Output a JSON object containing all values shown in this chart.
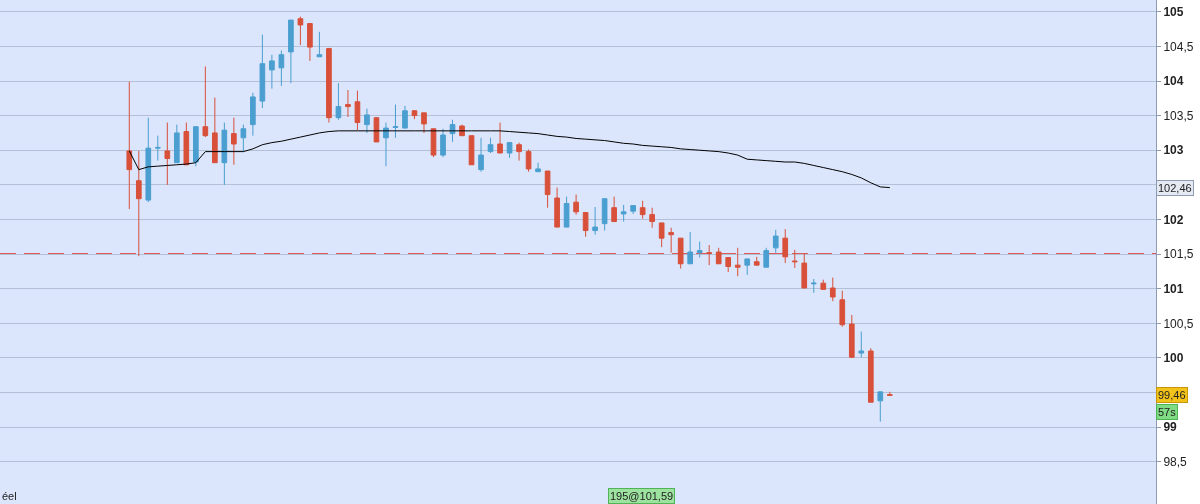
{
  "chart_data": {
    "type": "candlestick",
    "categories": [
      null,
      null,
      null,
      null,
      null,
      null,
      null,
      null,
      null,
      null,
      null,
      null,
      null,
      null,
      null,
      null,
      null,
      null,
      null,
      null,
      null,
      null,
      null,
      null,
      null,
      null,
      null,
      null,
      null,
      null,
      null,
      null,
      null,
      null,
      null,
      null,
      null,
      null,
      null,
      null,
      null,
      null,
      null,
      null,
      null,
      null,
      null,
      null,
      null,
      null,
      null,
      null,
      null,
      null,
      null,
      null,
      null,
      null,
      null,
      null,
      null,
      null,
      null,
      null,
      null,
      null,
      null,
      null,
      null,
      null,
      null,
      null,
      null,
      null,
      null,
      null,
      null,
      null,
      null,
      null,
      null
    ],
    "ohlc": [
      [
        102.99,
        103.99,
        102.15,
        102.72
      ],
      [
        102.56,
        102.99,
        101.47,
        102.3
      ],
      [
        102.28,
        103.47,
        102.25,
        103.03
      ],
      [
        103.03,
        103.21,
        102.85,
        103.04
      ],
      [
        102.99,
        103.4,
        102.5,
        102.88
      ],
      [
        102.82,
        103.37,
        102.82,
        103.25
      ],
      [
        103.27,
        103.4,
        102.79,
        102.79
      ],
      [
        102.83,
        103.34,
        102.77,
        103.34
      ],
      [
        103.34,
        104.21,
        103.19,
        103.21
      ],
      [
        103.25,
        103.76,
        102.82,
        102.82
      ],
      [
        102.82,
        103.4,
        102.5,
        103.29
      ],
      [
        103.24,
        103.47,
        102.79,
        103.09
      ],
      [
        103.18,
        103.37,
        102.98,
        103.31
      ],
      [
        103.37,
        103.83,
        103.21,
        103.77
      ],
      [
        103.71,
        104.67,
        103.61,
        104.25
      ],
      [
        104.16,
        104.38,
        103.89,
        104.29
      ],
      [
        104.19,
        104.44,
        103.93,
        104.38
      ],
      [
        104.42,
        104.88,
        103.97,
        104.88
      ],
      [
        104.9,
        104.93,
        104.52,
        104.81
      ],
      [
        104.83,
        104.83,
        104.29,
        104.49
      ],
      [
        104.35,
        104.71,
        104.35,
        104.38
      ],
      [
        104.47,
        104.47,
        103.4,
        103.47
      ],
      [
        103.47,
        103.97,
        103.44,
        103.63
      ],
      [
        103.66,
        103.87,
        103.48,
        103.63
      ],
      [
        103.7,
        103.86,
        103.29,
        103.4
      ],
      [
        103.37,
        103.6,
        103.25,
        103.51
      ],
      [
        103.47,
        103.48,
        103.12,
        103.12
      ],
      [
        103.18,
        103.4,
        102.77,
        103.32
      ],
      [
        103.33,
        103.66,
        103.18,
        103.34
      ],
      [
        103.32,
        103.64,
        103.32,
        103.57
      ],
      [
        103.57,
        103.58,
        103.45,
        103.5
      ],
      [
        103.54,
        103.54,
        103.25,
        103.38
      ],
      [
        103.31,
        103.31,
        102.9,
        102.93
      ],
      [
        102.93,
        103.31,
        102.9,
        103.22
      ],
      [
        103.24,
        103.44,
        103.12,
        103.37
      ],
      [
        103.35,
        103.37,
        103.21,
        103.21
      ],
      [
        103.21,
        103.21,
        102.79,
        102.79
      ],
      [
        102.72,
        103.18,
        102.69,
        102.93
      ],
      [
        102.98,
        103.18,
        102.96,
        103.08
      ],
      [
        103.09,
        103.4,
        102.96,
        102.96
      ],
      [
        102.96,
        103.12,
        102.89,
        103.11
      ],
      [
        103.08,
        103.11,
        102.85,
        102.98
      ],
      [
        102.98,
        103.01,
        102.69,
        102.73
      ],
      [
        102.69,
        102.82,
        102.69,
        102.73
      ],
      [
        102.7,
        102.7,
        102.17,
        102.36
      ],
      [
        102.31,
        102.46,
        101.89,
        101.89
      ],
      [
        101.89,
        102.33,
        101.89,
        102.23
      ],
      [
        102.25,
        102.36,
        102.07,
        102.11
      ],
      [
        102.1,
        102.1,
        101.75,
        101.84
      ],
      [
        101.84,
        102.18,
        101.78,
        101.89
      ],
      [
        101.94,
        102.3,
        101.84,
        102.3
      ],
      [
        102.17,
        102.33,
        101.97,
        101.97
      ],
      [
        102.08,
        102.21,
        101.97,
        102.11
      ],
      [
        102.12,
        102.2,
        102.08,
        102.2
      ],
      [
        102.17,
        102.27,
        102.01,
        102.07
      ],
      [
        102.07,
        102.17,
        101.88,
        101.97
      ],
      [
        101.95,
        101.95,
        101.6,
        101.73
      ],
      [
        101.81,
        101.88,
        101.52,
        101.78
      ],
      [
        101.73,
        101.73,
        101.29,
        101.36
      ],
      [
        101.36,
        101.82,
        101.36,
        101.53
      ],
      [
        101.52,
        101.68,
        101.45,
        101.55
      ],
      [
        101.52,
        101.63,
        101.34,
        101.51
      ],
      [
        101.53,
        101.59,
        101.36,
        101.36
      ],
      [
        101.45,
        101.45,
        101.24,
        101.32
      ],
      [
        101.34,
        101.59,
        101.18,
        101.31
      ],
      [
        101.34,
        101.43,
        101.2,
        101.43
      ],
      [
        101.39,
        101.46,
        101.34,
        101.34
      ],
      [
        101.31,
        101.59,
        101.31,
        101.55
      ],
      [
        101.59,
        101.85,
        101.52,
        101.76
      ],
      [
        101.73,
        101.86,
        101.37,
        101.46
      ],
      [
        101.4,
        101.56,
        101.3,
        101.39
      ],
      [
        101.37,
        101.51,
        101.01,
        101.01
      ],
      [
        101.07,
        101.14,
        100.94,
        101.08
      ],
      [
        101.08,
        101.13,
        100.99,
        100.99
      ],
      [
        101.01,
        101.16,
        100.82,
        100.88
      ],
      [
        100.84,
        100.97,
        100.45,
        100.48
      ],
      [
        100.49,
        100.62,
        100.0,
        100.01
      ],
      [
        100.07,
        100.38,
        100.01,
        100.1
      ],
      [
        100.1,
        100.14,
        99.36,
        99.36
      ],
      [
        99.38,
        99.51,
        99.08,
        99.51
      ],
      [
        99.47,
        99.51,
        99.46,
        99.46
      ]
    ],
    "colors": [
      "#d8503a",
      "#d8503a",
      "#4a9fd0",
      "#4a9fd0",
      "#d8503a",
      "#4a9fd0",
      "#d8503a",
      "#4a9fd0",
      "#d8503a",
      "#d8503a",
      "#4a9fd0",
      "#d8503a",
      "#4a9fd0",
      "#4a9fd0",
      "#4a9fd0",
      "#4a9fd0",
      "#4a9fd0",
      "#4a9fd0",
      "#d8503a",
      "#d8503a",
      "#4a9fd0",
      "#d8503a",
      "#4a9fd0",
      "#d8503a",
      "#d8503a",
      "#4a9fd0",
      "#d8503a",
      "#4a9fd0",
      "#4a9fd0",
      "#4a9fd0",
      "#d8503a",
      "#d8503a",
      "#d8503a",
      "#4a9fd0",
      "#4a9fd0",
      "#d8503a",
      "#d8503a",
      "#4a9fd0",
      "#4a9fd0",
      "#d8503a",
      "#4a9fd0",
      "#d8503a",
      "#d8503a",
      "#4a9fd0",
      "#d8503a",
      "#d8503a",
      "#4a9fd0",
      "#d8503a",
      "#d8503a",
      "#4a9fd0",
      "#4a9fd0",
      "#d8503a",
      "#4a9fd0",
      "#4a9fd0",
      "#d8503a",
      "#d8503a",
      "#d8503a",
      "#d8503a",
      "#d8503a",
      "#4a9fd0",
      "#4a9fd0",
      "#d8503a",
      "#d8503a",
      "#d8503a",
      "#d8503a",
      "#4a9fd0",
      "#d8503a",
      "#4a9fd0",
      "#4a9fd0",
      "#d8503a",
      "#d8503a",
      "#d8503a",
      "#4a9fd0",
      "#d8503a",
      "#d8503a",
      "#d8503a",
      "#d8503a",
      "#4a9fd0",
      "#d8503a",
      "#4a9fd0",
      "#d8503a"
    ],
    "series": [
      {
        "type": "line",
        "color": "#000000",
        "values": [
          102.99,
          102.72,
          102.76,
          102.77,
          102.78,
          102.79,
          102.8,
          102.82,
          102.98,
          102.98,
          102.98,
          102.98,
          102.98,
          103.02,
          103.08,
          103.11,
          103.13,
          103.16,
          103.19,
          103.22,
          103.25,
          103.27,
          103.28,
          103.28,
          103.28,
          103.28,
          103.28,
          103.28,
          103.28,
          103.28,
          103.28,
          103.28,
          103.28,
          103.28,
          103.28,
          103.28,
          103.28,
          103.28,
          103.28,
          103.28,
          103.27,
          103.26,
          103.25,
          103.24,
          103.22,
          103.2,
          103.19,
          103.17,
          103.16,
          103.15,
          103.14,
          103.12,
          103.1,
          103.09,
          103.07,
          103.06,
          103.05,
          103.04,
          103.02,
          103.01,
          103.0,
          102.99,
          102.98,
          102.96,
          102.93,
          102.87,
          102.86,
          102.85,
          102.84,
          102.83,
          102.83,
          102.81,
          102.78,
          102.75,
          102.72,
          102.69,
          102.65,
          102.6,
          102.53,
          102.47,
          102.46
        ]
      }
    ],
    "ylim": [
      97.89,
      105.17
    ],
    "yticks": [
      {
        "value": 98.5,
        "label": "98,5"
      },
      99,
      {
        "value": 99.5,
        "label": null
      },
      100,
      {
        "value": 100.5,
        "label": "100,5"
      },
      101,
      {
        "value": 101.5,
        "label": "101,5"
      },
      102,
      {
        "value": 102.5,
        "label": null
      },
      103,
      {
        "value": 103.5,
        "label": "103,5"
      },
      104,
      {
        "value": 104.5,
        "label": "104,5"
      },
      105
    ],
    "grid": "y",
    "tick_labels": "y",
    "ref_lines": [
      {
        "axis": "y",
        "value": 101.5,
        "color": "#e05a55",
        "line_style": "dashed"
      }
    ],
    "annotations": [
      "102,46",
      "99,46",
      "57s",
      "éel",
      "195@101,59"
    ]
  }
}
